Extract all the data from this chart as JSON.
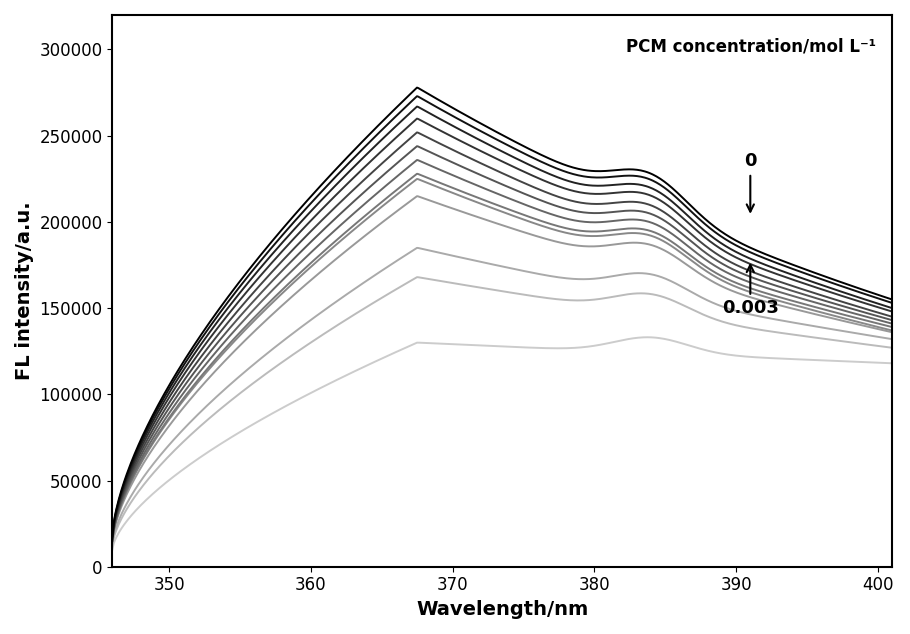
{
  "xlabel": "Wavelength/nm",
  "ylabel": "FL intensity/a.u.",
  "annotation_title": "PCM concentration/mol L⁻¹",
  "annotation_0": "0",
  "annotation_003": "0.003",
  "xmin": 346,
  "xmax": 401,
  "ymin": 0,
  "ymax": 320000,
  "yticks": [
    0,
    50000,
    100000,
    150000,
    200000,
    250000,
    300000
  ],
  "xticks": [
    350,
    360,
    370,
    380,
    390,
    400
  ],
  "peak_wavelength": 367.5,
  "num_curves": 13,
  "peak_values": [
    278000,
    273000,
    267000,
    260000,
    252000,
    244000,
    236000,
    228000,
    225000,
    215000,
    185000,
    168000,
    130000
  ],
  "start_values": [
    18000,
    17500,
    17000,
    16500,
    16000,
    15500,
    15000,
    15000,
    15000,
    14500,
    13000,
    12000,
    10000
  ],
  "end_values_400": [
    155000,
    153000,
    150000,
    148000,
    145000,
    143000,
    141000,
    139000,
    137000,
    136000,
    132000,
    127000,
    118000
  ],
  "shoulder_wl": 384,
  "shoulder_strength": [
    0.07,
    0.07,
    0.07,
    0.07,
    0.07,
    0.07,
    0.07,
    0.07,
    0.07,
    0.07,
    0.07,
    0.07,
    0.07
  ],
  "colors": [
    "#000000",
    "#111111",
    "#222222",
    "#333333",
    "#444444",
    "#555555",
    "#666666",
    "#777777",
    "#888888",
    "#999999",
    "#aaaaaa",
    "#bbbbbb",
    "#cccccc"
  ],
  "linewidth": 1.4,
  "bg_color": "#ffffff",
  "border_color": "#000000",
  "rise_steepness": 8.0,
  "fall_rate": 1.8
}
